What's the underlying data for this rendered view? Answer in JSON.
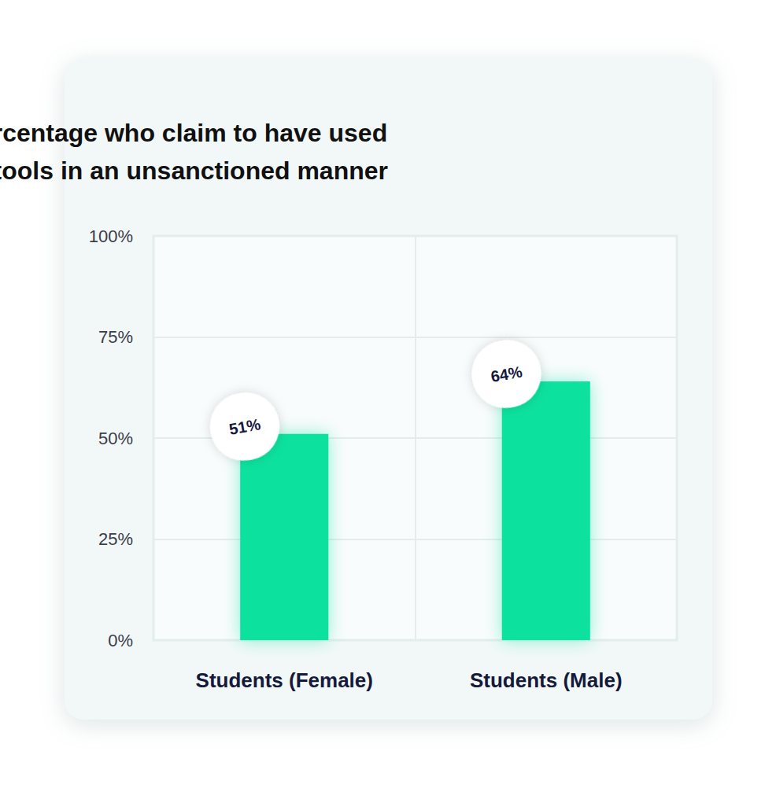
{
  "chart_data": {
    "type": "bar",
    "title": "Percentage who claim to have used\nAI tools in an unsanctioned manner",
    "categories": [
      "Students (Female)",
      "Students (Male)"
    ],
    "values": [
      51,
      64
    ],
    "value_labels": [
      "51%",
      "64%"
    ],
    "data_labels": true,
    "color": "#08e19e",
    "ylim": [
      0,
      100
    ],
    "yticks": [
      {
        "value": 0,
        "label": "0%"
      },
      {
        "value": 25,
        "label": "25%"
      },
      {
        "value": 50,
        "label": "50%"
      },
      {
        "value": 75,
        "label": "75%"
      },
      {
        "value": 100,
        "label": "100%"
      }
    ],
    "grid": true
  }
}
